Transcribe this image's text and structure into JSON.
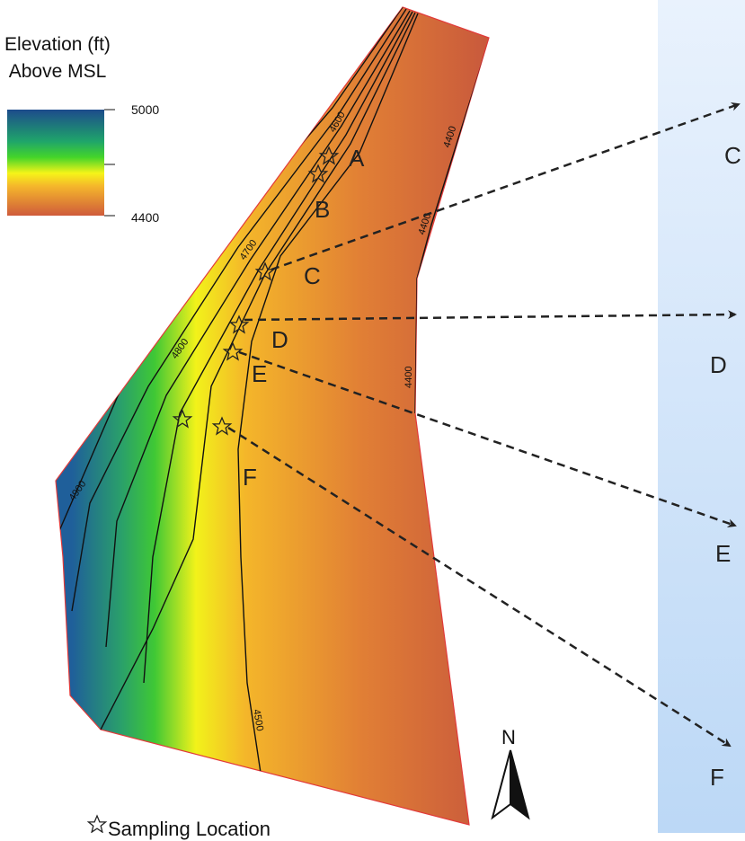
{
  "legend": {
    "title_line1": "Elevation (ft)",
    "title_line2": "Above MSL",
    "max_label": "5000",
    "min_label": "4400",
    "color_high": "#1a4a8c",
    "color_mid_green": "#2fc12a",
    "color_mid_yellow": "#f7f514",
    "color_low": "#cc5a3a"
  },
  "contour_labels": [
    "4600",
    "4700",
    "4800",
    "4900",
    "4400",
    "4400",
    "4400",
    "4500"
  ],
  "site_labels": [
    "A",
    "B",
    "C",
    "D",
    "E",
    "F"
  ],
  "panel_labels": [
    "C",
    "D",
    "E",
    "F"
  ],
  "north_label": "N",
  "footer_note": "Sampling Location",
  "colors": {
    "panel_top": "#e9f2fd",
    "panel_bottom": "#bcd8f6",
    "boundary": "#e23a3a"
  },
  "icons": [
    "star-icon",
    "north-arrow-icon",
    "dashed-arrow-icon"
  ]
}
